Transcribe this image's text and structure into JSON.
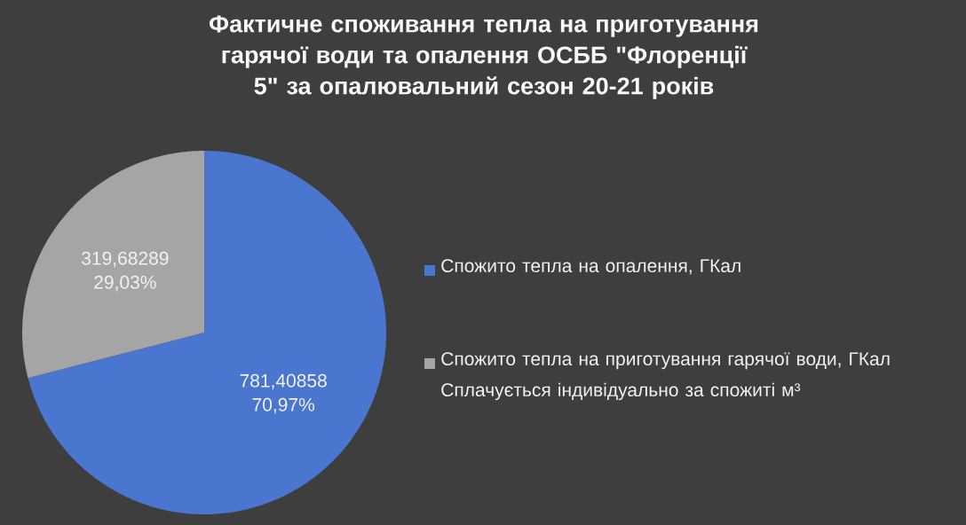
{
  "chart_data": {
    "type": "pie",
    "title": "Фактичне споживання тепла на приготування гарячої води та опалення ОСББ \"Флоренції 5\" за опалювальний сезон 20-21 років",
    "categories": [
      "Спожито тепла на опалення, ГКал",
      "Спожито тепла на приготування гарячої води, ГКал Сплачується індивідуально за спожиті м³"
    ],
    "values": [
      70.97,
      29.03
    ],
    "colors": [
      "#4a76cf",
      "#a5a5a5"
    ],
    "value_labels": [
      "781,40858 70,97%",
      "319,68289 29,03%"
    ],
    "legend": "right"
  }
}
